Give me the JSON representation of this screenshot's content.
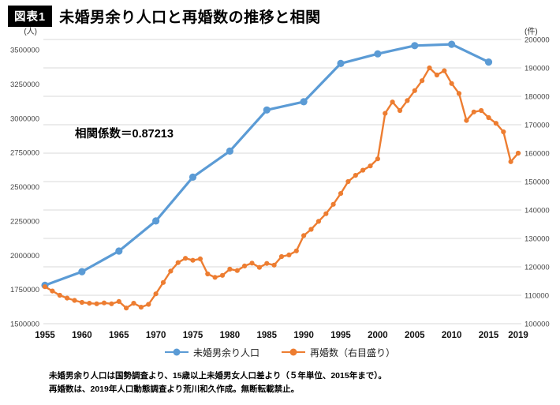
{
  "colors": {
    "blue": "#5B9BD5",
    "orange": "#ED7D31",
    "grid": "#D9D9D9",
    "axis_text": "#474747"
  },
  "header": {
    "figure_label": "図表1",
    "title": "未婚男余り人口と再婚数の推移と相関"
  },
  "axes": {
    "left_unit": "(人)",
    "right_unit": "(件)"
  },
  "footnote": {
    "lines": [
      "未婚男余り人口は国勢調査より、15歳以上未婚男女人口差より（５年単位、2015年まで）。",
      "再婚数は、2019年人口動態調査より荒川和久作成。無断転載禁止。"
    ]
  },
  "chart_data": {
    "type": "line",
    "title": "未婚男余り人口と再婚数の推移と相関",
    "annotation": "相関係数＝0.87213",
    "grid": true,
    "legend_position": "bottom",
    "x_tick_labels": [
      1955,
      1960,
      1965,
      1970,
      1975,
      1980,
      1985,
      1990,
      1995,
      2000,
      2005,
      2010,
      2015,
      2019
    ],
    "left_axis": {
      "unit": "(人)",
      "min": 1500000,
      "max": 3500000,
      "tick_step": 250000,
      "ticks": [
        1500000,
        1750000,
        2000000,
        2250000,
        2500000,
        2750000,
        3000000,
        3250000,
        3500000
      ]
    },
    "right_axis": {
      "unit": "(件)",
      "min": 100000,
      "max": 200000,
      "tick_step": 10000,
      "ticks": [
        100000,
        110000,
        120000,
        130000,
        140000,
        150000,
        160000,
        170000,
        180000,
        190000,
        200000
      ]
    },
    "series": [
      {
        "name": "未婚男余り人口",
        "key": "unmarried-men-surplus",
        "axis": "left",
        "color": "#5B9BD5",
        "x": [
          1955,
          1960,
          1965,
          1970,
          1975,
          1980,
          1985,
          1990,
          1995,
          2000,
          2005,
          2010,
          2015
        ],
        "values": [
          1780000,
          1880000,
          2030000,
          2250000,
          2570000,
          2760000,
          3060000,
          3120000,
          3400000,
          3470000,
          3530000,
          3540000,
          3410000
        ]
      },
      {
        "name": "再婚数（右目盛り）",
        "key": "remarriage-count",
        "axis": "right",
        "color": "#ED7D31",
        "x": [
          1955,
          1956,
          1957,
          1958,
          1959,
          1960,
          1961,
          1962,
          1963,
          1964,
          1965,
          1966,
          1967,
          1968,
          1969,
          1970,
          1971,
          1972,
          1973,
          1974,
          1975,
          1976,
          1977,
          1978,
          1979,
          1980,
          1981,
          1982,
          1983,
          1984,
          1985,
          1986,
          1987,
          1988,
          1989,
          1990,
          1991,
          1992,
          1993,
          1994,
          1995,
          1996,
          1997,
          1998,
          1999,
          2000,
          2001,
          2002,
          2003,
          2004,
          2005,
          2006,
          2007,
          2008,
          2009,
          2010,
          2011,
          2012,
          2013,
          2014,
          2015,
          2016,
          2017,
          2018,
          2019
        ],
        "values": [
          113000,
          111500,
          110000,
          109000,
          108200,
          107500,
          107200,
          107000,
          107300,
          107000,
          107800,
          105500,
          107200,
          105800,
          106800,
          110500,
          114500,
          118500,
          121500,
          123000,
          122300,
          122800,
          117500,
          116300,
          117000,
          119200,
          118700,
          120300,
          121300,
          119800,
          121200,
          120600,
          123600,
          124200,
          125600,
          131000,
          133200,
          136000,
          138700,
          142000,
          145800,
          150000,
          152200,
          154000,
          155500,
          158000,
          174000,
          178000,
          175000,
          178500,
          182000,
          185500,
          190000,
          187500,
          189000,
          184500,
          181000,
          171500,
          174500,
          175000,
          172500,
          170500,
          167500,
          157000,
          160000
        ]
      }
    ]
  }
}
